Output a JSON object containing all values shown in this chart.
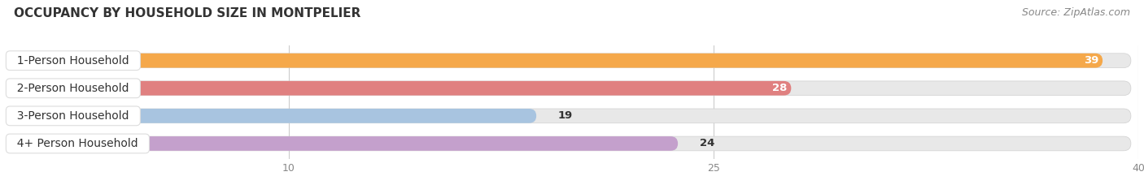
{
  "title": "OCCUPANCY BY HOUSEHOLD SIZE IN MONTPELIER",
  "source": "Source: ZipAtlas.com",
  "categories": [
    "1-Person Household",
    "2-Person Household",
    "3-Person Household",
    "4+ Person Household"
  ],
  "values": [
    39,
    28,
    19,
    24
  ],
  "bar_colors": [
    "#F5A84A",
    "#E08080",
    "#A8C4E0",
    "#C4A0CC"
  ],
  "track_color": "#E8E8E8",
  "track_border_color": "#D0D0D0",
  "xlim_min": 0,
  "xlim_max": 40,
  "xticks": [
    10,
    25,
    40
  ],
  "label_fontsize": 10,
  "value_fontsize": 9.5,
  "title_fontsize": 11,
  "source_fontsize": 9,
  "bar_height": 0.52,
  "background_color": "#FFFFFF",
  "label_box_color": "#FFFFFF",
  "label_box_edge": "#DDDDDD",
  "grid_color": "#CCCCCC",
  "text_color": "#333333",
  "axis_color": "#888888"
}
